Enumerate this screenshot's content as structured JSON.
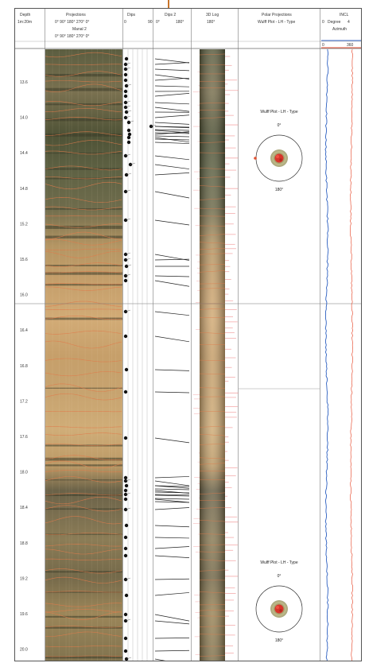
{
  "header": {
    "depth": {
      "title": "Depth",
      "scale": "1m:20m"
    },
    "projections": {
      "title": "Projections",
      "ticks": "0°  90°  180°  270°  0°",
      "sub": "Manal 2",
      "sub_ticks": "0°  90°  180°  270°  0°"
    },
    "dips": {
      "title": "Dips",
      "ticks_left": "0",
      "ticks_right": "90"
    },
    "dips2": {
      "title": "Dips 2",
      "ticks_left": "0°",
      "ticks_right": "180°"
    },
    "log3d": {
      "title": "3D Log",
      "tick": "180°"
    },
    "polar": {
      "title": "Polar Projections",
      "sub": "Wulff Plot - LH - Type"
    },
    "incl": {
      "title": "INCL",
      "degree_min": "0",
      "degree_label": "Degree",
      "degree_max": "4",
      "azimuth_label": "Azimuth",
      "azimuth_min": "0",
      "azimuth_max": "360"
    }
  },
  "depth_labels": [
    "13.6",
    "14.0",
    "14.4",
    "14.8",
    "15.2",
    "15.6",
    "16.0",
    "16.4",
    "16.8",
    "17.2",
    "17.6",
    "18.0",
    "18.4",
    "18.8",
    "19.2",
    "19.6",
    "20.0"
  ],
  "stereonets": [
    {
      "title": "Wulff Plot - LH - Type",
      "north": "0°",
      "south": "180°"
    },
    {
      "title": "Wulff Plot - LH - Type",
      "north": "0°",
      "south": "180°"
    }
  ],
  "colors": {
    "core_dark": "#55563a",
    "core_light": "#c9a46a",
    "trace_orange": "#e07a4a",
    "incl_blue": "#2c5fc0",
    "azimuth_red": "#e8553a",
    "dip_dot": "#111111"
  }
}
